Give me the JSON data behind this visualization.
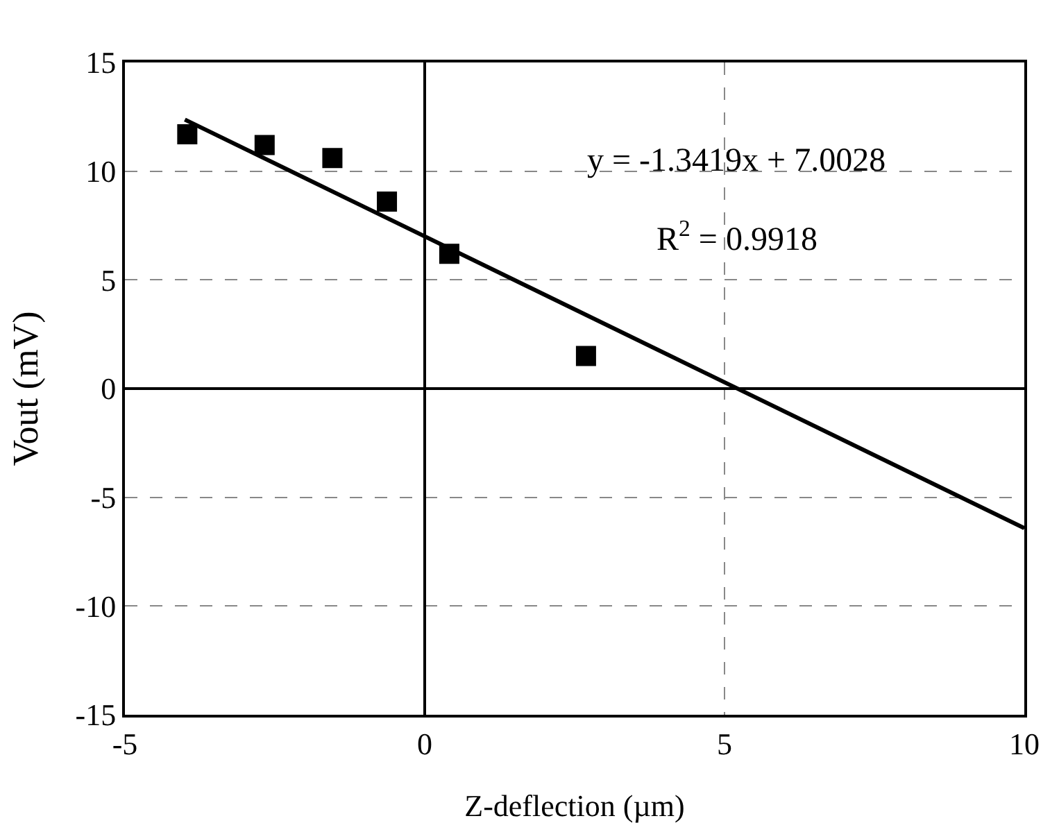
{
  "chart_data": {
    "type": "scatter",
    "xlabel": "Z-deflection (µm)",
    "ylabel": "Vout (mV)",
    "x": [
      -3.96,
      -2.67,
      -1.54,
      -0.63,
      0.41,
      2.69
    ],
    "series": [
      {
        "type": "scatter",
        "color": "#000000",
        "marker": "square",
        "values": [
          11.7,
          11.2,
          10.6,
          8.6,
          6.2,
          1.5
        ]
      },
      {
        "type": "line",
        "color": "#000000",
        "x": [
          -4,
          10
        ],
        "values": [
          12.37,
          -6.42
        ],
        "line_style": "solid"
      }
    ],
    "annotations": [
      "y = -1.3419x + 7.0028",
      "R$^{2}$ = 0.9918"
    ],
    "xlim": [
      -5,
      10
    ],
    "xticks": [
      -5,
      0,
      5,
      10
    ],
    "ylim": [
      -15,
      15
    ],
    "yticks": [
      -15,
      -10,
      -5,
      0,
      5,
      10,
      15
    ],
    "grid": true
  }
}
